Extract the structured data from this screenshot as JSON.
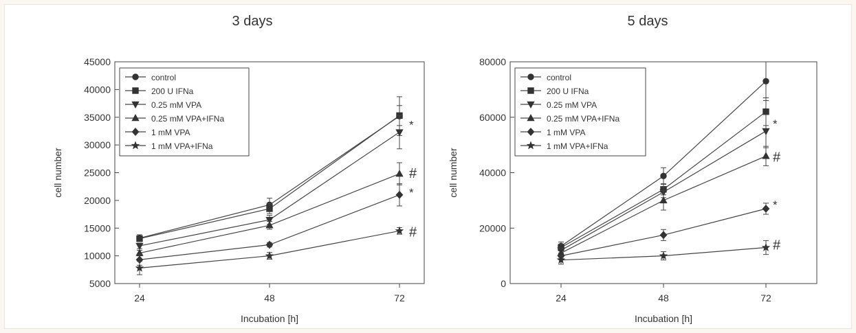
{
  "chart_data": [
    {
      "type": "line",
      "title": "3 days",
      "xlabel": "Incubation [h]",
      "ylabel": "cell number",
      "x": [
        24,
        48,
        72
      ],
      "xlim": [
        24,
        72
      ],
      "ylim": [
        5000,
        45000
      ],
      "yticks": [
        5000,
        10000,
        15000,
        20000,
        25000,
        30000,
        35000,
        40000,
        45000
      ],
      "grid": false,
      "legend_position": "top-left",
      "series": [
        {
          "name": "control",
          "marker": "circle",
          "values": [
            13200,
            19200,
            35200
          ],
          "err": [
            600,
            1200,
            3500
          ]
        },
        {
          "name": "200 U IFNa",
          "marker": "square",
          "values": [
            13100,
            18500,
            35300
          ],
          "err": [
            400,
            900,
            1800
          ]
        },
        {
          "name": "0.25 mM VPA",
          "marker": "triangle-down",
          "values": [
            11800,
            16500,
            32300
          ],
          "err": [
            500,
            800,
            3000
          ]
        },
        {
          "name": "0.25 mM VPA+IFNa",
          "marker": "triangle-up",
          "values": [
            10500,
            15500,
            24800
          ],
          "err": [
            500,
            700,
            2000
          ]
        },
        {
          "name": "1 mM VPA",
          "marker": "diamond",
          "values": [
            9300,
            12000,
            21000
          ],
          "err": [
            1000,
            400,
            2000
          ]
        },
        {
          "name": "1 mM VPA+IFNa",
          "marker": "star",
          "values": [
            7800,
            10000,
            14500
          ],
          "err": [
            1200,
            600,
            600
          ]
        }
      ],
      "annotations": [
        {
          "text": "*",
          "series": "0.25 mM VPA"
        },
        {
          "text": "#",
          "series": "0.25 mM VPA+IFNa"
        },
        {
          "text": "*",
          "series": "1 mM VPA"
        },
        {
          "text": "#",
          "series": "1 mM VPA+IFNa"
        }
      ]
    },
    {
      "type": "line",
      "title": "5 days",
      "xlabel": "Incubation [h]",
      "ylabel": "cell number",
      "x": [
        24,
        48,
        72
      ],
      "xlim": [
        24,
        72
      ],
      "ylim": [
        0,
        80000
      ],
      "yticks": [
        0,
        20000,
        40000,
        60000,
        80000
      ],
      "grid": false,
      "legend_position": "top-left",
      "series": [
        {
          "name": "control",
          "marker": "circle",
          "values": [
            13500,
            38800,
            73000
          ],
          "err": [
            1500,
            3000,
            7000
          ]
        },
        {
          "name": "200 U IFNa",
          "marker": "square",
          "values": [
            13000,
            34000,
            62000
          ],
          "err": [
            1200,
            2000,
            5000
          ]
        },
        {
          "name": "0.25 mM VPA",
          "marker": "triangle-down",
          "values": [
            12000,
            33000,
            55000
          ],
          "err": [
            1000,
            2000,
            6000
          ]
        },
        {
          "name": "0.25 mM VPA+IFNa",
          "marker": "triangle-up",
          "values": [
            11000,
            30000,
            46000
          ],
          "err": [
            1500,
            3500,
            3500
          ]
        },
        {
          "name": "1 mM VPA",
          "marker": "diamond",
          "values": [
            10000,
            17500,
            27000
          ],
          "err": [
            1000,
            2000,
            2000
          ]
        },
        {
          "name": "1 mM VPA+IFNa",
          "marker": "star",
          "values": [
            8500,
            10000,
            13000
          ],
          "err": [
            1500,
            1500,
            2500
          ]
        }
      ],
      "annotations": [
        {
          "text": "*",
          "series": "0.25 mM VPA"
        },
        {
          "text": "#",
          "series": "0.25 mM VPA+IFNa"
        },
        {
          "text": "*",
          "series": "1 mM VPA"
        },
        {
          "text": "#",
          "series": "1 mM VPA+IFNa"
        }
      ]
    }
  ]
}
